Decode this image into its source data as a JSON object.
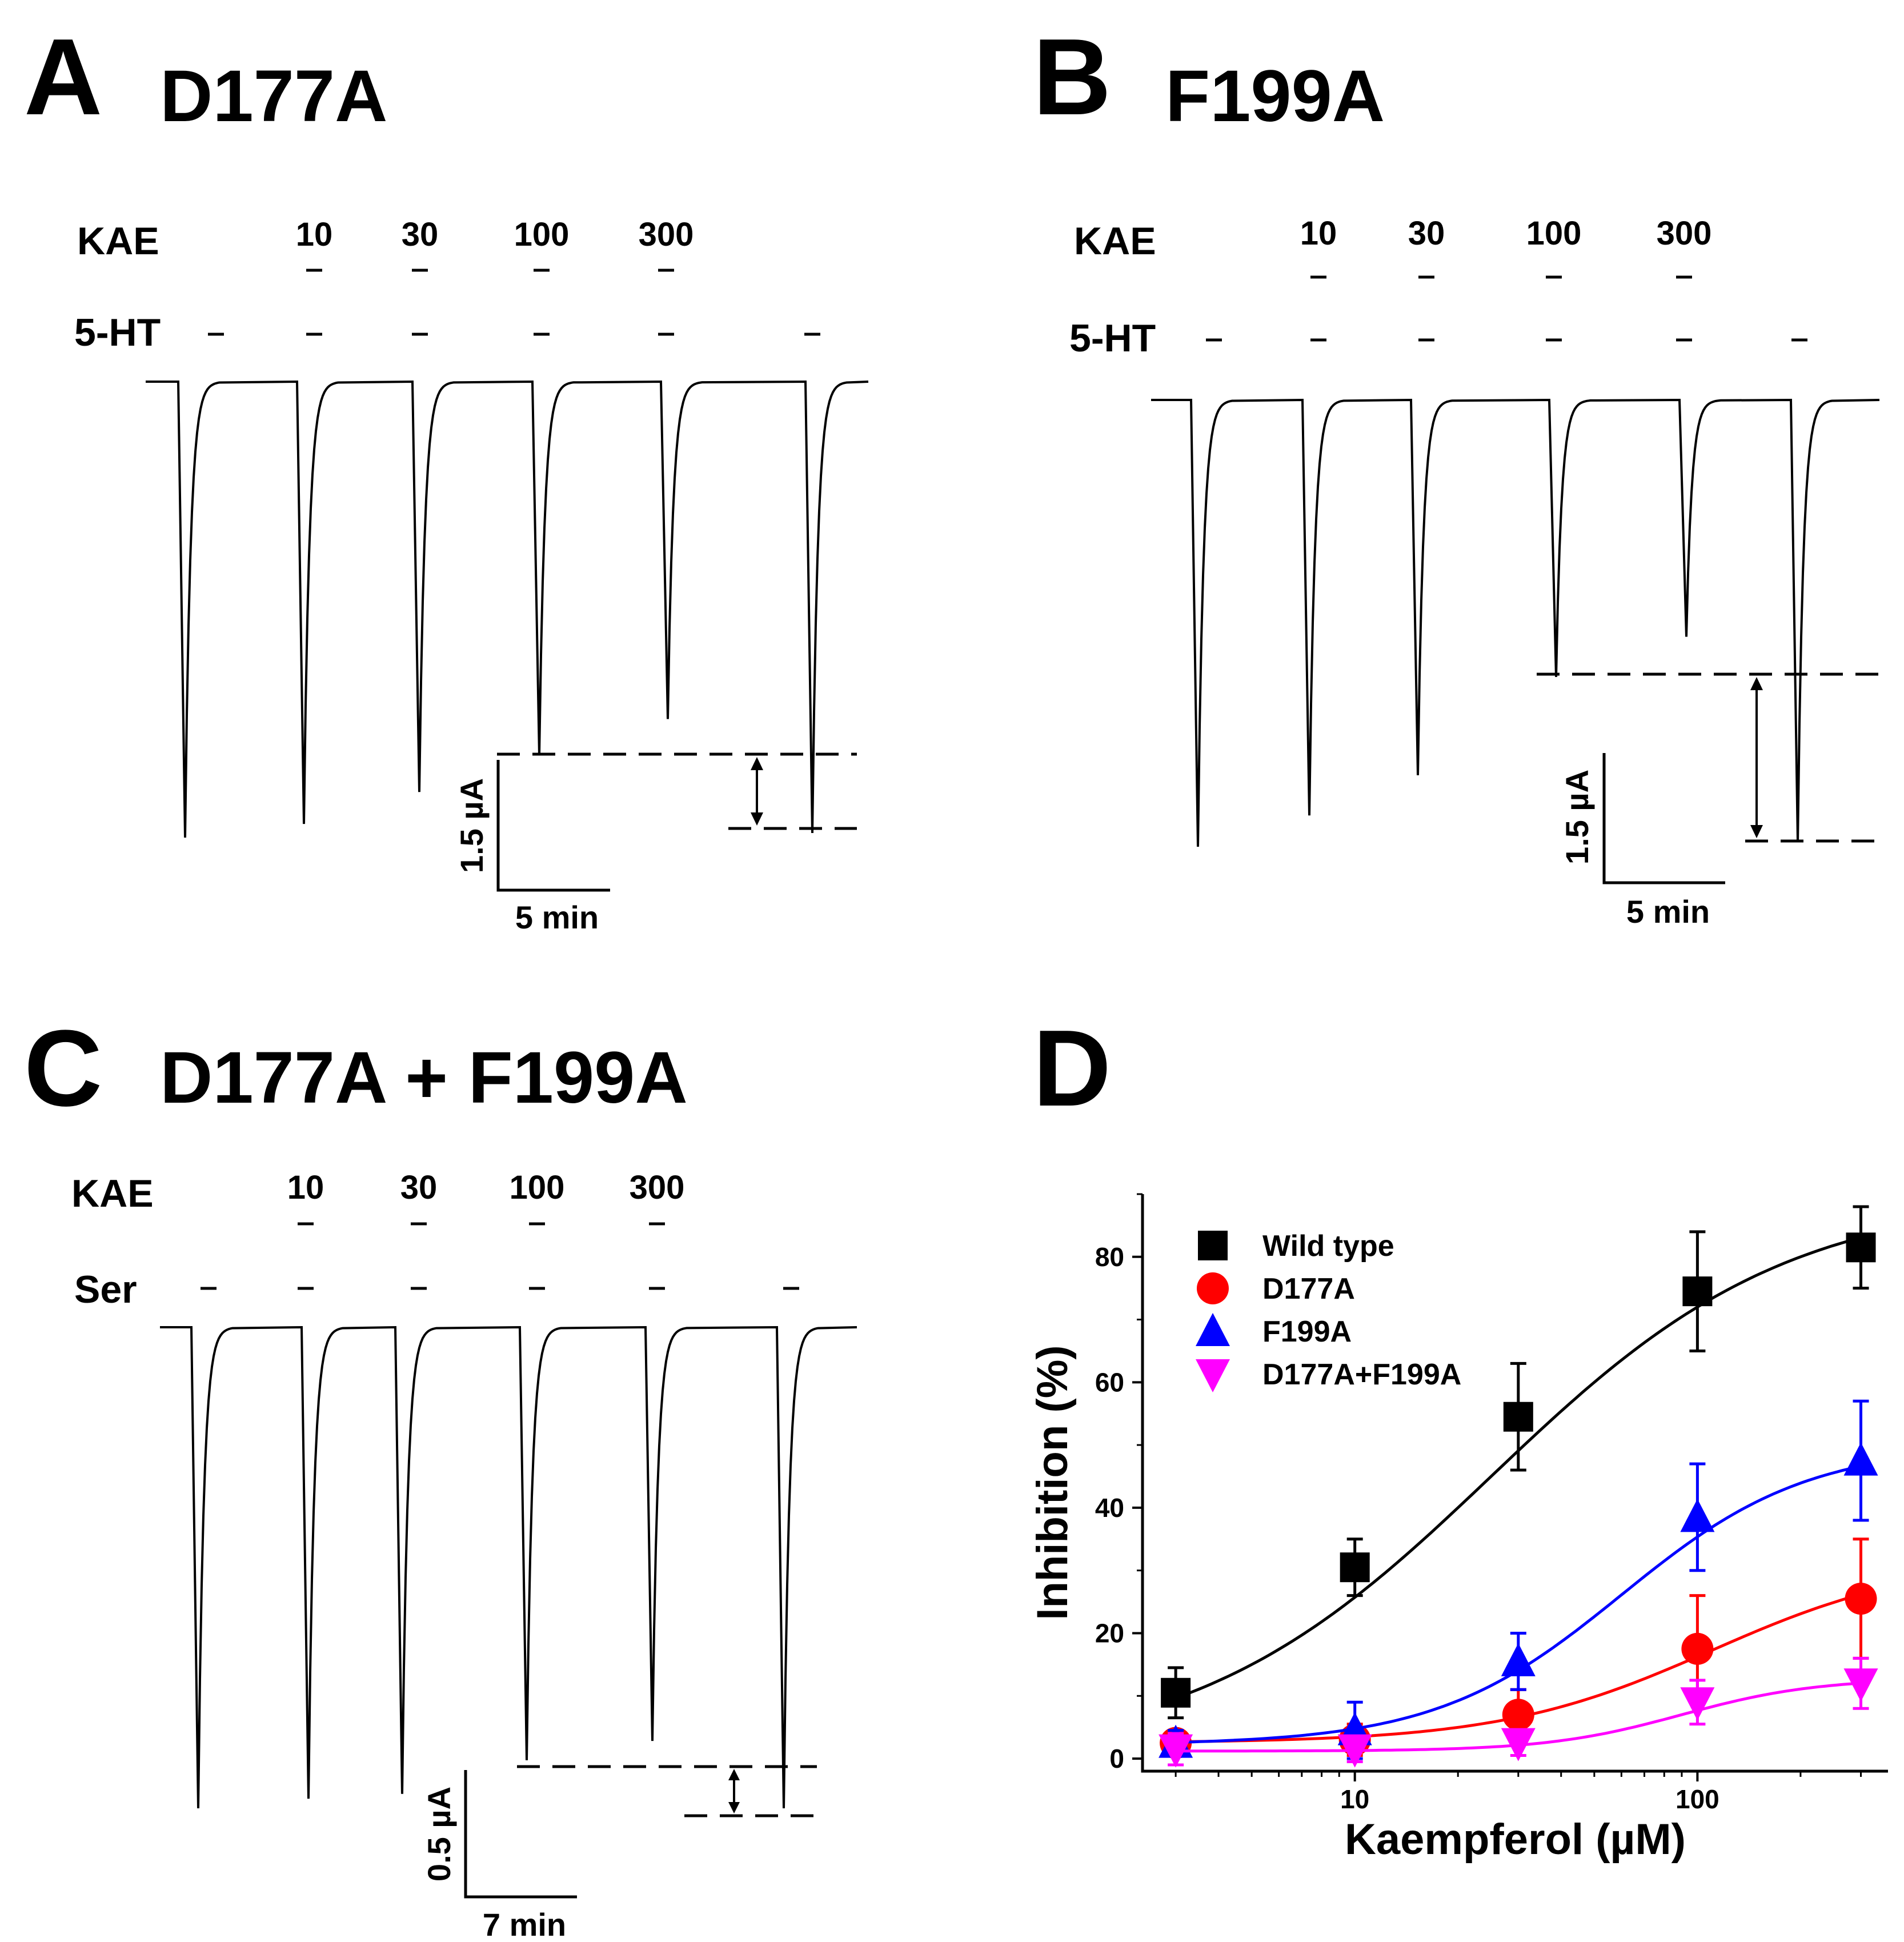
{
  "panels": {
    "A": {
      "letter": "A",
      "title": "D177A",
      "drug_label": "KAE",
      "agonist_label": "5-HT",
      "concentrations": [
        "10",
        "30",
        "100",
        "300"
      ],
      "scale_y": "1.5 µA",
      "scale_x": "5 min",
      "peak_amplitudes": [
        1.0,
        0.97,
        0.9,
        0.82,
        0.74,
        0.99
      ]
    },
    "B": {
      "letter": "B",
      "title": "F199A",
      "drug_label": "KAE",
      "agonist_label": "5-HT",
      "concentrations": [
        "10",
        "30",
        "100",
        "300"
      ],
      "scale_y": "1.5 µA",
      "scale_x": "5 min",
      "peak_amplitudes": [
        1.0,
        0.93,
        0.84,
        0.62,
        0.53,
        0.99
      ]
    },
    "C": {
      "letter": "C",
      "title": "D177A + F199A",
      "drug_label": "KAE",
      "agonist_label": "Ser",
      "concentrations": [
        "10",
        "30",
        "100",
        "300"
      ],
      "scale_y": "0.5 µA",
      "scale_x": "7 min",
      "peak_amplitudes": [
        1.0,
        0.98,
        0.97,
        0.9,
        0.86,
        1.0
      ]
    },
    "D": {
      "letter": "D"
    }
  },
  "chart_data": {
    "type": "scatter",
    "xlabel": "Kaempferol (µM)",
    "ylabel": "Inhibition (%)",
    "xscale": "log",
    "xlim": [
      2.4,
      360
    ],
    "ylim": [
      -2,
      90
    ],
    "x_ticks": [
      "10",
      "100"
    ],
    "y_ticks": [
      "0",
      "20",
      "40",
      "60",
      "80"
    ],
    "legend_position": "top-left",
    "x": [
      3,
      10,
      30,
      100,
      300
    ],
    "series": [
      {
        "name": "Wild type",
        "marker": "square",
        "color": "#000000",
        "values": [
          10.5,
          30.5,
          54.5,
          74.5,
          81.5
        ],
        "errors": [
          4,
          4.5,
          8.5,
          9.5,
          6.5
        ],
        "fit": {
          "bottom": 0,
          "top": 90,
          "ec50": 25,
          "hill": 1
        }
      },
      {
        "name": "D177A",
        "marker": "circle",
        "color": "#ff0000",
        "values": [
          2.5,
          3.0,
          7.0,
          17.5,
          25.5
        ],
        "errors": [
          2,
          2.5,
          4,
          8.5,
          9.5
        ],
        "fit": {
          "bottom": 2.5,
          "top": 32,
          "ec50": 110,
          "hill": 1.4
        }
      },
      {
        "name": "F199A",
        "marker": "triangle-up",
        "color": "#0000ff",
        "values": [
          2.5,
          4.5,
          15.5,
          38.5,
          47.5
        ],
        "errors": [
          2,
          4.5,
          4.5,
          8.5,
          9.5
        ],
        "fit": {
          "bottom": 2.2,
          "top": 50,
          "ec50": 60,
          "hill": 1.6
        }
      },
      {
        "name": "D177A+F199A",
        "marker": "triangle-down",
        "color": "#ff00ff",
        "values": [
          1.5,
          1.5,
          2.5,
          9.0,
          12.0
        ],
        "errors": [
          2.5,
          2,
          2,
          3.5,
          4
        ],
        "fit": {
          "bottom": 1.2,
          "top": 12.8,
          "ec50": 90,
          "hill": 2.2
        }
      }
    ]
  }
}
